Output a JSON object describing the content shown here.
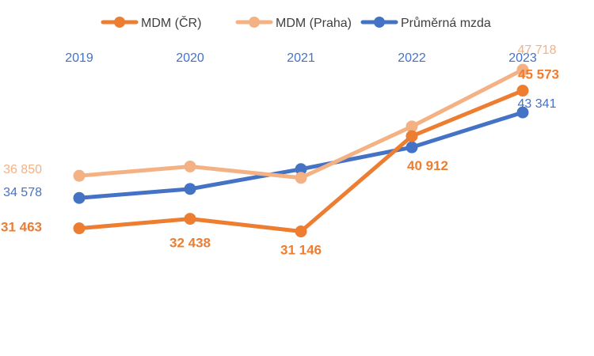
{
  "chart_data": {
    "type": "line",
    "title": "",
    "xlabel": "",
    "ylabel": "",
    "categories": [
      "2019",
      "2020",
      "2021",
      "2022",
      "2023"
    ],
    "ylim": [
      20000,
      50000
    ],
    "grid": false,
    "legend_position": "top-center",
    "series": [
      {
        "name": "MDM (ČR)",
        "color": "#ED7D31",
        "values": [
          31463,
          32438,
          31146,
          40912,
          45573
        ],
        "labels": [
          "31 463",
          "32 438",
          "31 146",
          "40 912",
          "45 573"
        ],
        "label_indices": [
          0,
          1,
          2,
          3,
          4
        ],
        "label_bold": true
      },
      {
        "name": "MDM (Praha)",
        "color": "#F4B183",
        "values": [
          36850,
          37800,
          36640,
          41900,
          47718
        ],
        "labels": [
          "36 850",
          "47 718"
        ],
        "label_indices": [
          0,
          4
        ],
        "label_bold": false
      },
      {
        "name": "Průměrná mzda",
        "color": "#4472C4",
        "values": [
          34578,
          35500,
          37530,
          39770,
          43341
        ],
        "labels": [
          "34 578",
          "43 341"
        ],
        "label_indices": [
          0,
          4
        ],
        "label_bold": false
      }
    ]
  },
  "colors": {
    "axis_text": "#4472C4"
  }
}
